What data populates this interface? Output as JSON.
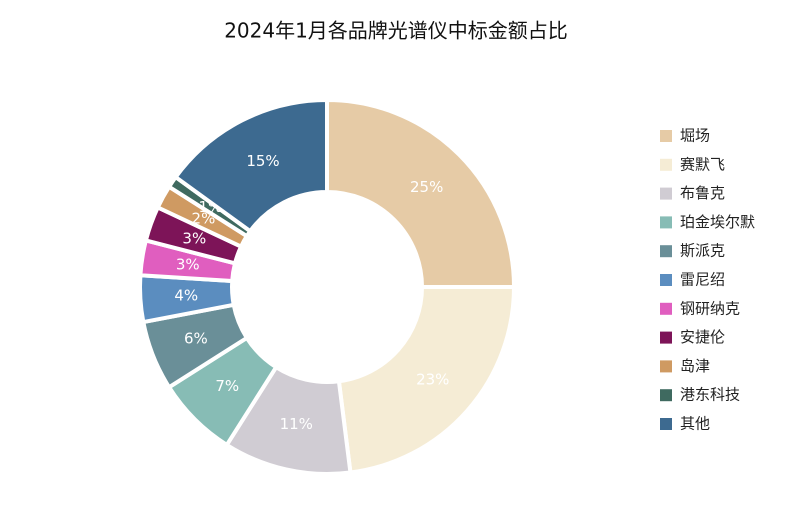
{
  "chart_data": {
    "type": "donut",
    "title": "2024年1月各品牌光谱仪中标金额占比",
    "categories": [
      "堀场",
      "赛默飞",
      "布鲁克",
      "珀金埃尔默",
      "斯派克",
      "雷尼绍",
      "钢研纳克",
      "安捷伦",
      "岛津",
      "港东科技",
      "其他"
    ],
    "values": [
      25,
      23,
      11,
      7,
      6,
      4,
      3,
      3,
      2,
      1,
      15
    ],
    "value_labels": [
      "25%",
      "23%",
      "11%",
      "7%",
      "6%",
      "4%",
      "3%",
      "3%",
      "2%",
      "1%",
      "15%"
    ],
    "colors": [
      "#e6cba6",
      "#f5ecd5",
      "#d0ccd3",
      "#87bcb5",
      "#6a8f98",
      "#5b8dbf",
      "#e05ebf",
      "#7d1458",
      "#cf9a62",
      "#3f6a60",
      "#3d6a90"
    ],
    "legend": "right"
  }
}
